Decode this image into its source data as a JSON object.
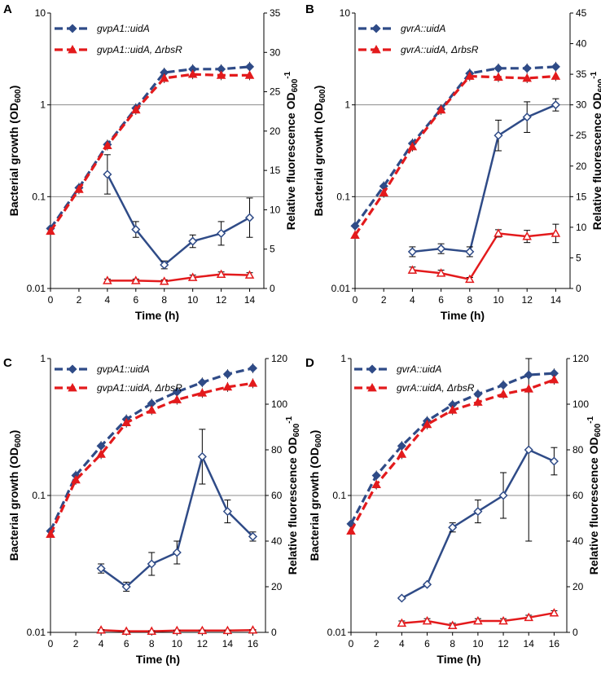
{
  "colors": {
    "blue": "#2f4b87",
    "red": "#e31a1c",
    "grid": "#8c8c8c"
  },
  "chart_data": [
    {
      "panel": "A",
      "type": "line",
      "xlabel": "Time (h)",
      "ylabel_left": "Bacterial growth (OD600)",
      "ylabel_right": "Relative fluorescence OD600-1",
      "x_ticks": [
        0,
        2,
        4,
        6,
        8,
        10,
        12,
        14
      ],
      "xlim": [
        0,
        15
      ],
      "ylim_left": [
        0.01,
        10
      ],
      "yticks_left": [
        "0.01",
        "0.1",
        "1",
        "10"
      ],
      "ylim_right": [
        0,
        35
      ],
      "yticks_right": [
        0,
        5,
        10,
        15,
        20,
        25,
        30,
        35
      ],
      "grid": "horizontal at decades",
      "legend": [
        "gvpA1::uidA",
        "gvpA1::uidA, ΔrbsR"
      ],
      "growth_series": [
        {
          "name": "gvpA1::uidA",
          "x": [
            0,
            2,
            4,
            6,
            8,
            10,
            12,
            14
          ],
          "y": [
            0.045,
            0.125,
            0.37,
            0.92,
            2.25,
            2.45,
            2.45,
            2.6
          ]
        },
        {
          "name": "gvpA1::uidA, ΔrbsR",
          "x": [
            0,
            2,
            4,
            6,
            8,
            10,
            12,
            14
          ],
          "y": [
            0.042,
            0.12,
            0.36,
            0.88,
            1.95,
            2.15,
            2.1,
            2.1
          ]
        }
      ],
      "fluorescence_series": [
        {
          "name": "gvpA1::uidA",
          "x": [
            4,
            6,
            8,
            10,
            12,
            14
          ],
          "y": [
            14.5,
            7.5,
            3.0,
            6.0,
            7.0,
            9.0
          ],
          "err": [
            2.5,
            1.0,
            0.5,
            0.8,
            1.5,
            2.5
          ]
        },
        {
          "name": "gvpA1::uidA, ΔrbsR",
          "x": [
            4,
            6,
            8,
            10,
            12,
            14
          ],
          "y": [
            1.0,
            1.0,
            0.9,
            1.4,
            1.8,
            1.7
          ],
          "err": [
            0.2,
            0.2,
            0.2,
            0.3,
            0.3,
            0.3
          ]
        }
      ]
    },
    {
      "panel": "B",
      "type": "line",
      "xlabel": "Time (h)",
      "ylabel_left": "Bacterial growth (OD600)",
      "ylabel_right": "Relative fluorescence OD600-1",
      "x_ticks": [
        0,
        2,
        4,
        6,
        8,
        10,
        12,
        14
      ],
      "xlim": [
        0,
        15
      ],
      "ylim_left": [
        0.01,
        10
      ],
      "yticks_left": [
        "0.01",
        "0.1",
        "1",
        "10"
      ],
      "ylim_right": [
        0,
        45
      ],
      "yticks_right": [
        0,
        5,
        10,
        15,
        20,
        25,
        30,
        35,
        40,
        45
      ],
      "grid": "horizontal at decades",
      "legend": [
        "gvrA::uidA",
        "gvrA::uidA, ΔrbsR"
      ],
      "growth_series": [
        {
          "name": "gvrA::uidA",
          "x": [
            0,
            2,
            4,
            6,
            8,
            10,
            12,
            14
          ],
          "y": [
            0.048,
            0.13,
            0.38,
            0.9,
            2.2,
            2.5,
            2.5,
            2.6
          ]
        },
        {
          "name": "gvrA::uidA, ΔrbsR",
          "x": [
            0,
            2,
            4,
            6,
            8,
            10,
            12,
            14
          ],
          "y": [
            0.038,
            0.11,
            0.35,
            0.88,
            2.05,
            2.0,
            1.95,
            2.05
          ]
        }
      ],
      "fluorescence_series": [
        {
          "name": "gvrA::uidA",
          "x": [
            4,
            6,
            8,
            10,
            12,
            14
          ],
          "y": [
            6.0,
            6.5,
            6.0,
            25.0,
            28.0,
            30.0
          ],
          "err": [
            0.8,
            0.8,
            0.8,
            2.5,
            2.5,
            1.0
          ]
        },
        {
          "name": "gvrA::uidA, ΔrbsR",
          "x": [
            4,
            6,
            8,
            10,
            12,
            14
          ],
          "y": [
            3.0,
            2.5,
            1.5,
            9.0,
            8.5,
            9.0
          ],
          "err": [
            0.5,
            0.5,
            0.3,
            0.6,
            1.0,
            1.5
          ]
        }
      ]
    },
    {
      "panel": "C",
      "type": "line",
      "xlabel": "Time (h)",
      "ylabel_left": "Bacterial growth (OD600)",
      "ylabel_right": "Relative fluorescence OD600-1",
      "x_ticks": [
        0,
        2,
        4,
        6,
        8,
        10,
        12,
        14,
        16
      ],
      "xlim": [
        0,
        17
      ],
      "ylim_left": [
        0.01,
        1
      ],
      "yticks_left": [
        "0.01",
        "0.1",
        "1"
      ],
      "ylim_right": [
        0,
        120
      ],
      "yticks_right": [
        0,
        20,
        40,
        60,
        80,
        100,
        120
      ],
      "grid": "horizontal at decades",
      "legend": [
        "gvpA1::uidA",
        "gvpA1::uidA, ΔrbsR"
      ],
      "growth_series": [
        {
          "name": "gvpA1::uidA",
          "x": [
            0,
            2,
            4,
            6,
            8,
            10,
            12,
            14,
            16
          ],
          "y": [
            0.055,
            0.14,
            0.23,
            0.36,
            0.47,
            0.57,
            0.67,
            0.77,
            0.85
          ]
        },
        {
          "name": "gvpA1::uidA, ΔrbsR",
          "x": [
            0,
            2,
            4,
            6,
            8,
            10,
            12,
            14,
            16
          ],
          "y": [
            0.052,
            0.13,
            0.2,
            0.34,
            0.42,
            0.5,
            0.56,
            0.62,
            0.66
          ]
        }
      ],
      "fluorescence_series": [
        {
          "name": "gvpA1::uidA",
          "x": [
            4,
            6,
            8,
            10,
            12,
            14,
            16
          ],
          "y": [
            28,
            20,
            30,
            35,
            77,
            53,
            42
          ],
          "err": [
            2,
            2,
            5,
            5,
            12,
            5,
            2
          ]
        },
        {
          "name": "gvpA1::uidA, ΔrbsR",
          "x": [
            4,
            6,
            8,
            10,
            12,
            14,
            16
          ],
          "y": [
            1.0,
            0.5,
            0.5,
            0.8,
            0.8,
            0.8,
            1.0
          ],
          "err": [
            0.2,
            0.2,
            0.2,
            0.2,
            0.2,
            0.2,
            0.2
          ]
        }
      ]
    },
    {
      "panel": "D",
      "type": "line",
      "xlabel": "Time (h)",
      "ylabel_left": "Bacterial growth (OD600)",
      "ylabel_right": "Relative fluorescence OD600-1",
      "x_ticks": [
        0,
        2,
        4,
        6,
        8,
        10,
        12,
        14,
        16
      ],
      "xlim": [
        0,
        17
      ],
      "ylim_left": [
        0.01,
        1
      ],
      "yticks_left": [
        "0.01",
        "0.1",
        "1"
      ],
      "ylim_right": [
        0,
        120
      ],
      "yticks_right": [
        0,
        20,
        40,
        60,
        80,
        100,
        120
      ],
      "grid": "horizontal at decades",
      "legend": [
        "gvrA::uidA",
        "gvrA::uidA, ΔrbsR"
      ],
      "growth_series": [
        {
          "name": "gvrA::uidA",
          "x": [
            0,
            2,
            4,
            6,
            8,
            10,
            12,
            14,
            16
          ],
          "y": [
            0.062,
            0.14,
            0.23,
            0.35,
            0.46,
            0.55,
            0.64,
            0.76,
            0.78
          ]
        },
        {
          "name": "gvrA::uidA, ΔrbsR",
          "x": [
            0,
            2,
            4,
            6,
            8,
            10,
            12,
            14,
            16
          ],
          "y": [
            0.055,
            0.12,
            0.2,
            0.33,
            0.42,
            0.48,
            0.55,
            0.6,
            0.7
          ]
        }
      ],
      "fluorescence_series": [
        {
          "name": "gvrA::uidA",
          "x": [
            4,
            6,
            8,
            10,
            12,
            14,
            16
          ],
          "y": [
            15,
            21,
            46,
            53,
            60,
            80,
            75
          ],
          "err": [
            0.5,
            0.5,
            2,
            5,
            10,
            40,
            6
          ]
        },
        {
          "name": "gvrA::uidA, ΔrbsR",
          "x": [
            4,
            6,
            8,
            10,
            12,
            14,
            16
          ],
          "y": [
            4,
            5,
            3,
            5,
            5,
            6.5,
            8.5
          ],
          "err": [
            1,
            1,
            1,
            1,
            1,
            1,
            1
          ]
        }
      ]
    }
  ]
}
